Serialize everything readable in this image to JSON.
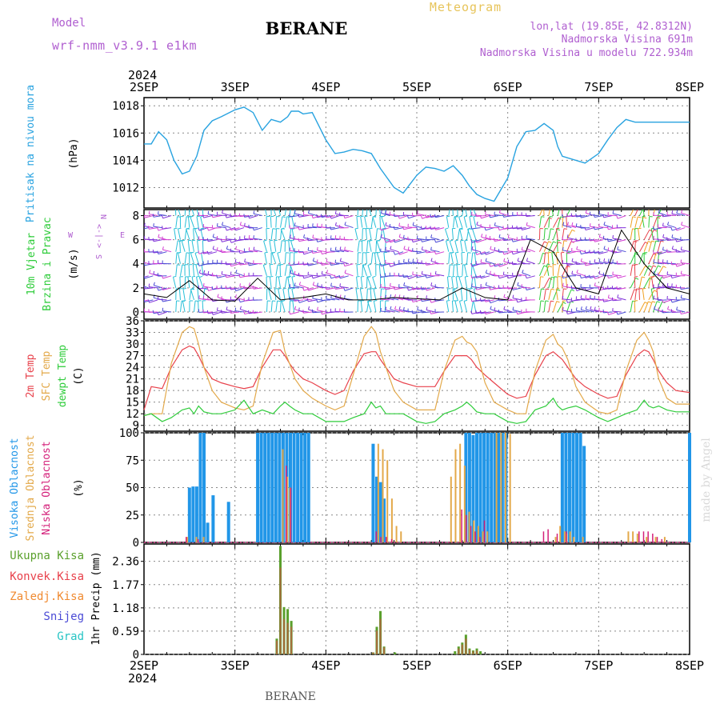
{
  "header": {
    "model_label": "Model",
    "model_name": "wrf-nmm_v3.9.1  e1km",
    "station": "BERANE",
    "product": "Meteogram",
    "coords": "lon,lat (19.85E, 42.8312N)",
    "altitude": "Nadmorska Visina 691m",
    "model_altitude": "Nadmorska Visina u modelu 722.934m",
    "footer_station": "BERANE",
    "watermark": "made by Angel"
  },
  "axis": {
    "year": "2024",
    "date_labels": [
      "2SEP",
      "3SEP",
      "4SEP",
      "5SEP",
      "6SEP",
      "7SEP",
      "8SEP"
    ]
  },
  "colors": {
    "pressure": "#29a3e0",
    "temp2m": "#e8414b",
    "sfc_temp": "#e3a94a",
    "dewpoint": "#2ecc3a",
    "high_cloud": "#2196e8",
    "mid_cloud": "#e3a94a",
    "low_cloud": "#d4207a",
    "total_precip": "#5aa02c",
    "conv_precip": "#e8414b",
    "frozen_precip": "#f08a30",
    "snow": "#4b4bd6",
    "graupel": "#27c4c4",
    "label_purple": "#b05fd0",
    "label_gold": "#e7c45a",
    "wind_axis": "#b05fd0"
  },
  "panels": {
    "pressure": {
      "ylabel_name": "Pritisak na nivou mora",
      "ylabel_unit": "(hPa)"
    },
    "wind": {
      "ylabel_name1": "10m Vjetar",
      "ylabel_name2": "Brzina i Pravac",
      "ylabel_unit": "(m/s)",
      "compass_n": "N",
      "compass_s": "S",
      "compass_e": "E",
      "compass_w": "W",
      "compass_arrows": "<-|->"
    },
    "temperature": {
      "ylabel_t2m": "2m Temp",
      "ylabel_sfc": "SFC Temp",
      "ylabel_dew": "dewpt Temp",
      "ylabel_unit": "(C)"
    },
    "clouds": {
      "ylabel_high": "Visoka Oblacnost",
      "ylabel_mid": "Srednja Oblacnost",
      "ylabel_low": "Niska Oblacnost",
      "ylabel_unit": "(%)"
    },
    "precip": {
      "ylabel": "1hr Precip (mm)",
      "legend": [
        "Ukupna Kisa",
        "Konvek.Kisa",
        "Zaledj.Kisa",
        "Snijeg",
        "Grad"
      ]
    }
  },
  "chart_data": [
    {
      "type": "line",
      "title": "",
      "ylabel": "Pritisak na nivou mora (hPa)",
      "ylim": [
        1010.5,
        1018.6
      ],
      "yticks": [
        1012,
        1014,
        1016,
        1018
      ],
      "series": [
        {
          "name": "Pritisak na nivou mora",
          "x": [
            0,
            0.08,
            0.16,
            0.25,
            0.33,
            0.42,
            0.5,
            0.58,
            0.66,
            0.75,
            0.85,
            1.0,
            1.1,
            1.2,
            1.3,
            1.4,
            1.5,
            1.58,
            1.62,
            1.7,
            1.75,
            1.85,
            2.0,
            2.1,
            2.2,
            2.3,
            2.4,
            2.5,
            2.6,
            2.75,
            2.85,
            3.0,
            3.1,
            3.2,
            3.3,
            3.4,
            3.5,
            3.58,
            3.66,
            3.75,
            3.85,
            4.0,
            4.1,
            4.2,
            4.3,
            4.4,
            4.5,
            4.55,
            4.6,
            4.75,
            4.85,
            5.0,
            5.1,
            5.2,
            5.3,
            5.4,
            5.5,
            5.6,
            5.7,
            5.8,
            5.9,
            6.0
          ],
          "values": [
            1015.2,
            1015.2,
            1016.1,
            1015.5,
            1014.0,
            1013.0,
            1013.2,
            1014.3,
            1016.2,
            1016.9,
            1017.2,
            1017.7,
            1017.9,
            1017.5,
            1016.2,
            1017.0,
            1016.8,
            1017.2,
            1017.6,
            1017.6,
            1017.4,
            1017.5,
            1015.5,
            1014.5,
            1014.6,
            1014.8,
            1014.7,
            1014.5,
            1013.4,
            1012.0,
            1011.6,
            1012.9,
            1013.5,
            1013.4,
            1013.2,
            1013.6,
            1012.9,
            1012.1,
            1011.5,
            1011.2,
            1011.0,
            1012.7,
            1015.0,
            1016.1,
            1016.2,
            1016.7,
            1016.2,
            1015.0,
            1014.3,
            1014.0,
            1013.8,
            1014.5,
            1015.5,
            1016.4,
            1017.0,
            1016.8,
            1016.8,
            1016.8,
            1016.8,
            1016.8,
            1016.8,
            1016.8
          ]
        }
      ]
    },
    {
      "type": "line",
      "title": "",
      "ylabel": "10m Vjetar Brzina i Pravac (m/s)",
      "ylim": [
        -0.6,
        8.5
      ],
      "yticks": [
        0,
        2,
        4,
        6,
        8
      ],
      "series": [
        {
          "name": "10m Vjetar",
          "x": [
            0,
            0.25,
            0.5,
            0.75,
            1.0,
            1.25,
            1.5,
            1.75,
            2.0,
            2.25,
            2.5,
            2.75,
            3.0,
            3.25,
            3.5,
            3.75,
            4.0,
            4.25,
            4.5,
            4.75,
            5.0,
            5.25,
            5.5,
            5.75,
            6.0
          ],
          "values": [
            1.5,
            1.2,
            2.6,
            1.0,
            0.9,
            2.8,
            1.0,
            1.2,
            1.5,
            1.0,
            1.0,
            1.2,
            1.1,
            1.0,
            2.0,
            1.2,
            1.0,
            6.0,
            5.0,
            2.0,
            1.5,
            6.8,
            4.0,
            2.0,
            1.5
          ]
        }
      ]
    },
    {
      "type": "line",
      "title": "",
      "ylabel": "(C)",
      "ylim": [
        7.5,
        36
      ],
      "yticks": [
        9,
        12,
        15,
        18,
        21,
        24,
        27,
        30,
        33,
        36
      ],
      "x": [
        0,
        0.08,
        0.2,
        0.3,
        0.42,
        0.5,
        0.55,
        0.6,
        0.66,
        0.75,
        0.85,
        1.0,
        1.1,
        1.2,
        1.3,
        1.42,
        1.5,
        1.55,
        1.6,
        1.66,
        1.75,
        1.85,
        2.0,
        2.1,
        2.2,
        2.3,
        2.42,
        2.5,
        2.55,
        2.6,
        2.66,
        2.75,
        2.85,
        3.0,
        3.1,
        3.2,
        3.3,
        3.42,
        3.5,
        3.55,
        3.6,
        3.66,
        3.75,
        3.85,
        4.0,
        4.1,
        4.2,
        4.3,
        4.42,
        4.5,
        4.55,
        4.6,
        4.66,
        4.75,
        4.85,
        5.0,
        5.1,
        5.2,
        5.3,
        5.42,
        5.5,
        5.55,
        5.6,
        5.66,
        5.75,
        5.85,
        6.0
      ],
      "series": [
        {
          "name": "2m Temp",
          "values": [
            13,
            19,
            18.5,
            24,
            28.5,
            29.5,
            29,
            27,
            24,
            21,
            20,
            19,
            18.5,
            19,
            24,
            28.5,
            28.5,
            27,
            25,
            23,
            21,
            20,
            18,
            17,
            18,
            23,
            27.5,
            28,
            28,
            26,
            24,
            21,
            20,
            19,
            19,
            19,
            23,
            27,
            27,
            27,
            26,
            24,
            22,
            20,
            17,
            16,
            16.5,
            22,
            27,
            28,
            27,
            26,
            24,
            21,
            19,
            17,
            16,
            16.5,
            22,
            27,
            28.5,
            28,
            26,
            23,
            20,
            18,
            17.5
          ]
        },
        {
          "name": "SFC Temp",
          "values": [
            11.5,
            12,
            12,
            25,
            33,
            34.5,
            34,
            30,
            24,
            18,
            15,
            13.5,
            13,
            14,
            25,
            33,
            33.5,
            28,
            25,
            21,
            18,
            16,
            14,
            13,
            14,
            22,
            32,
            34.5,
            33,
            28,
            24,
            18,
            15,
            13,
            13,
            13,
            23,
            31,
            32,
            30.5,
            30,
            28,
            20,
            15,
            13,
            12,
            12,
            23,
            31,
            32.5,
            30,
            29,
            26,
            19,
            15,
            12.5,
            12,
            13,
            23,
            31,
            33,
            31,
            28,
            21,
            16,
            14.5,
            14.5
          ]
        },
        {
          "name": "dewpt Temp",
          "values": [
            11.5,
            12,
            10,
            11,
            13,
            13.5,
            12,
            14,
            12.5,
            12,
            12,
            13,
            15.5,
            12,
            13,
            12,
            14,
            15,
            14,
            13,
            12,
            12,
            10,
            10,
            10,
            11,
            12,
            15,
            13.5,
            14,
            12,
            12,
            12,
            10,
            9.5,
            10,
            12,
            13,
            14,
            15,
            14,
            12.5,
            12,
            12,
            10,
            9.5,
            10,
            13,
            14,
            16,
            14,
            13,
            13.5,
            14,
            13,
            11,
            10,
            11,
            12,
            13,
            15.5,
            14,
            13.5,
            14,
            13,
            12.5,
            12.5
          ]
        }
      ]
    },
    {
      "type": "bar",
      "title": "",
      "ylabel": "(%)",
      "ylim": [
        0,
        100
      ],
      "yticks": [
        0,
        25,
        50,
        75,
        100
      ],
      "series": [
        {
          "name": "Visoka Oblacnost",
          "x": [
            0.5,
            0.54,
            0.58,
            0.62,
            0.66,
            0.7,
            0.76,
            0.84,
            0.93,
            1.25,
            1.29,
            1.33,
            1.37,
            1.41,
            1.45,
            1.49,
            1.53,
            1.57,
            1.61,
            1.65,
            1.69,
            1.73,
            1.77,
            1.81,
            2.52,
            2.56,
            2.6,
            2.64,
            3.54,
            3.58,
            3.62,
            3.66,
            3.7,
            3.74,
            3.78,
            3.82,
            3.86,
            3.9,
            3.94,
            3.98,
            4.6,
            4.64,
            4.68,
            4.72,
            4.76,
            4.8,
            4.84,
            6.0
          ],
          "values": [
            50,
            51,
            51,
            100,
            100,
            18,
            43,
            0,
            37,
            100,
            100,
            100,
            100,
            100,
            100,
            100,
            100,
            100,
            100,
            100,
            100,
            100,
            100,
            100,
            90,
            60,
            55,
            40,
            100,
            100,
            98,
            100,
            100,
            100,
            100,
            100,
            100,
            100,
            100,
            100,
            100,
            100,
            100,
            100,
            100,
            100,
            88,
            100
          ]
        },
        {
          "name": "Srednja Oblacnost",
          "x": [
            0.45,
            0.55,
            0.63,
            1.5,
            1.55,
            1.58,
            2.55,
            2.6,
            2.65,
            2.7,
            2.75,
            2.8,
            3.35,
            3.4,
            3.45,
            3.5,
            3.55,
            3.6,
            3.65,
            3.7,
            3.75,
            3.85,
            3.9,
            3.95,
            4.0,
            4.5,
            4.55,
            4.6,
            4.62,
            4.66,
            4.7,
            4.8,
            5.3,
            5.35,
            5.4,
            5.5,
            5.6,
            5.7
          ],
          "values": [
            5,
            5,
            5,
            85,
            60,
            50,
            90,
            85,
            75,
            40,
            15,
            10,
            60,
            85,
            90,
            70,
            28,
            20,
            15,
            10,
            10,
            100,
            100,
            100,
            99,
            5,
            15,
            10,
            8,
            10,
            5,
            5,
            10,
            10,
            8,
            5,
            5,
            5
          ]
        },
        {
          "name": "Niska Oblacnost",
          "x": [
            0.42,
            0.55,
            1.52,
            1.57,
            2.51,
            2.56,
            2.62,
            2.68,
            3.45,
            3.5,
            3.55,
            3.6,
            3.65,
            3.7,
            4.35,
            4.4,
            4.5,
            4.6,
            5.4,
            5.45,
            5.5,
            5.55,
            5.6,
            5.65
          ],
          "values": [
            5,
            3,
            70,
            50,
            10,
            5,
            5,
            3,
            30,
            25,
            15,
            10,
            5,
            20,
            10,
            12,
            8,
            10,
            10,
            10,
            10,
            8,
            5,
            3
          ]
        }
      ]
    },
    {
      "type": "bar",
      "title": "",
      "ylabel": "1hr Precip (mm)",
      "ylim": [
        0,
        2.8
      ],
      "yticks": [
        0,
        0.59,
        1.18,
        1.77,
        2.36
      ],
      "series": [
        {
          "name": "Ukupna Kisa",
          "x": [
            1.46,
            1.5,
            1.54,
            1.58,
            1.62,
            2.52,
            2.56,
            2.6,
            2.64,
            2.76,
            3.42,
            3.46,
            3.5,
            3.54,
            3.58,
            3.62,
            3.66,
            3.7
          ],
          "values": [
            0.4,
            2.75,
            1.2,
            1.15,
            0.85,
            0.05,
            0.7,
            1.1,
            0.2,
            0.05,
            0.08,
            0.2,
            0.3,
            0.5,
            0.15,
            0.1,
            0.15,
            0.08
          ]
        },
        {
          "name": "Konvek.Kisa",
          "x": [
            1.46,
            1.5,
            1.54,
            1.58,
            1.62,
            2.52,
            2.56,
            2.6,
            2.64,
            3.46,
            3.5,
            3.54,
            3.58,
            3.62,
            3.66
          ],
          "values": [
            0.35,
            2.2,
            0.9,
            0.8,
            0.7,
            0.05,
            0.6,
            0.9,
            0.18,
            0.15,
            0.25,
            0.4,
            0.12,
            0.08,
            0.1
          ]
        }
      ]
    }
  ]
}
